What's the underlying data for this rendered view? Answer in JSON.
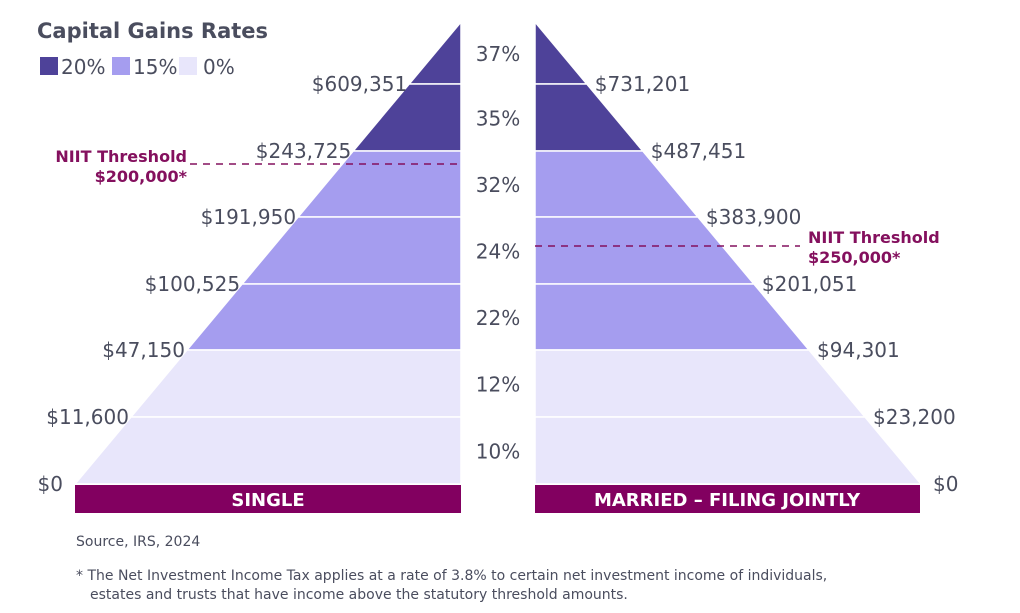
{
  "title": "Capital Gains Rates",
  "legend": [
    {
      "label": "20%",
      "color": "#4e4299"
    },
    {
      "label": "15%",
      "color": "#a59def"
    },
    {
      "label": "0%",
      "color": "#e8e6fb"
    }
  ],
  "rates": [
    "37%",
    "35%",
    "32%",
    "24%",
    "22%",
    "12%",
    "10%"
  ],
  "single": {
    "label": "SINGLE",
    "thresholds": [
      "$609,351",
      "$243,725",
      "$191,950",
      "$100,525",
      "$47,150",
      "$11,600",
      "$0"
    ],
    "niit_title": "NIIT Threshold",
    "niit_amount": "$200,000*"
  },
  "married": {
    "label": "MARRIED – FILING JOINTLY",
    "thresholds": [
      "$731,201",
      "$487,451",
      "$383,900",
      "$201,051",
      "$94,301",
      "$23,200",
      "$0"
    ],
    "niit_title": "NIIT Threshold",
    "niit_amount": "$250,000*"
  },
  "band_capital_gains_rate": [
    "20%",
    "20%",
    "15%",
    "15%",
    "15%",
    "0%",
    "0%"
  ],
  "bar_color": "#820060",
  "source": "Source, IRS, 2024",
  "footnote_line1": "* The Net Investment Income Tax applies at a rate of 3.8% to certain net investment income of individuals,",
  "footnote_line2": "estates and trusts that have income above the statutory threshold amounts."
}
